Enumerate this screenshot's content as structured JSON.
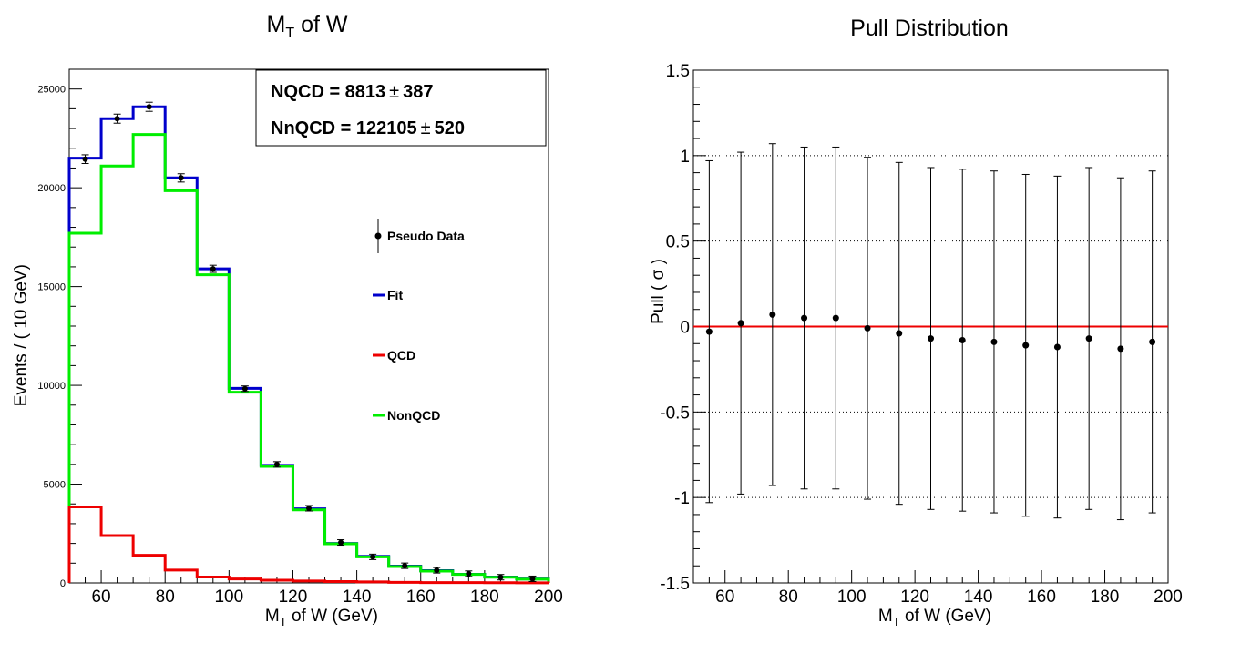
{
  "chart_data": [
    {
      "type": "line",
      "title_main": "M",
      "title_sub": "T",
      "title_rest": " of W",
      "xlabel_main": "M",
      "xlabel_sub": "T",
      "xlabel_rest": " of W (GeV)",
      "ylabel": "Events / ( 10 GeV)",
      "xlim": [
        50,
        200
      ],
      "ylim": [
        0,
        26000
      ],
      "x_ticks": [
        60,
        80,
        100,
        120,
        140,
        160,
        180,
        200
      ],
      "x_tick_labels": [
        "60",
        "80",
        "100",
        "120",
        "140",
        "160",
        "180",
        "200"
      ],
      "y_ticks": [
        0,
        5000,
        10000,
        15000,
        20000,
        25000
      ],
      "y_tick_labels": [
        "0",
        "5000",
        "10000",
        "15000",
        "20000",
        "25000"
      ],
      "bin_edges": [
        50,
        60,
        70,
        80,
        90,
        100,
        110,
        120,
        130,
        140,
        150,
        160,
        170,
        180,
        190,
        200
      ],
      "series": [
        {
          "name": "Fit",
          "kind": "step",
          "color": "#0000cc",
          "values": [
            21500,
            23500,
            24100,
            20500,
            15900,
            9850,
            5950,
            3750,
            2000,
            1350,
            850,
            620,
            440,
            300,
            200
          ]
        },
        {
          "name": "QCD",
          "kind": "step",
          "color": "#ee0000",
          "values": [
            3850,
            2400,
            1400,
            650,
            300,
            200,
            140,
            100,
            70,
            50,
            30,
            20,
            15,
            10,
            8
          ]
        },
        {
          "name": "NonQCD",
          "kind": "step",
          "color": "#00ee00",
          "values": [
            17700,
            21100,
            22700,
            19850,
            15600,
            9650,
            5900,
            3700,
            1980,
            1320,
            830,
            600,
            430,
            290,
            190
          ]
        },
        {
          "name": "Pseudo Data",
          "kind": "points",
          "color": "#000000",
          "x": [
            55,
            65,
            75,
            85,
            95,
            105,
            115,
            125,
            135,
            145,
            155,
            165,
            175,
            185,
            195
          ],
          "values": [
            21450,
            23500,
            24100,
            20500,
            15900,
            9830,
            6000,
            3780,
            2050,
            1320,
            870,
            640,
            470,
            290,
            210
          ],
          "errors": [
            220,
            230,
            230,
            210,
            180,
            140,
            110,
            90,
            70,
            60,
            50,
            40,
            35,
            30,
            25
          ]
        }
      ],
      "legend": [
        "Pseudo Data",
        "Fit",
        "QCD",
        "NonQCD"
      ],
      "stats": [
        {
          "label": "NQCD =  8813",
          "pm": "±",
          "err": "387"
        },
        {
          "label": "NnQCD =  122105",
          "pm": "±",
          "err": "520"
        }
      ]
    },
    {
      "type": "scatter",
      "title": "Pull Distribution",
      "xlabel_main": "M",
      "xlabel_sub": "T",
      "xlabel_rest": " of W (GeV)",
      "ylabel": "Pull ( σ )",
      "xlim": [
        50,
        200
      ],
      "ylim": [
        -1.5,
        1.5
      ],
      "x_ticks": [
        60,
        80,
        100,
        120,
        140,
        160,
        180,
        200
      ],
      "x_tick_labels": [
        "60",
        "80",
        "100",
        "120",
        "140",
        "160",
        "180",
        "200"
      ],
      "y_ticks": [
        -1.5,
        -1,
        -0.5,
        0,
        0.5,
        1,
        1.5
      ],
      "y_tick_labels": [
        "-1.5",
        "-1",
        "-0.5",
        "0",
        "0.5",
        "1",
        "1.5"
      ],
      "grid_y": [
        -1,
        -0.5,
        0.5,
        1
      ],
      "zero_line_color": "#ee0000",
      "series": [
        {
          "name": "Pull",
          "color": "#000000",
          "x": [
            55,
            65,
            75,
            85,
            95,
            105,
            115,
            125,
            135,
            145,
            155,
            165,
            175,
            185,
            195
          ],
          "values": [
            -0.03,
            0.02,
            0.07,
            0.05,
            0.05,
            -0.01,
            -0.04,
            -0.07,
            -0.08,
            -0.09,
            -0.11,
            -0.12,
            -0.07,
            -0.13,
            -0.09
          ],
          "errors": [
            1.0,
            1.0,
            1.0,
            1.0,
            1.0,
            1.0,
            1.0,
            1.0,
            1.0,
            1.0,
            1.0,
            1.0,
            1.0,
            1.0,
            1.0
          ]
        }
      ]
    }
  ]
}
